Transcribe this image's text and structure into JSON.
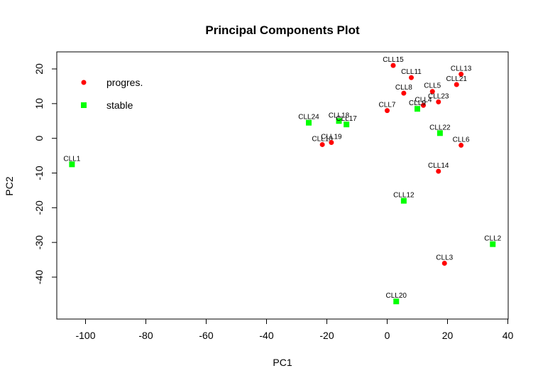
{
  "chart_data": {
    "type": "scatter",
    "title": "Principal Components Plot",
    "xlabel": "PC1",
    "ylabel": "PC2",
    "xlim": [
      -110,
      40
    ],
    "ylim": [
      -50,
      22
    ],
    "xticks": [
      -100,
      -80,
      -60,
      -40,
      -20,
      0,
      20,
      40
    ],
    "yticks": [
      -40,
      -30,
      -20,
      -10,
      0,
      10,
      20
    ],
    "grid": false,
    "legend_position": "top-left",
    "series": [
      {
        "name": "progres.",
        "color": "#ff0000",
        "marker": "circle",
        "points": [
          {
            "label": "CLL15",
            "x": 2,
            "y": 21
          },
          {
            "label": "CLL11",
            "x": 8,
            "y": 17.5
          },
          {
            "label": "CLL13",
            "x": 24.5,
            "y": 18.5
          },
          {
            "label": "CLL21",
            "x": 23,
            "y": 15.5
          },
          {
            "label": "CLL8",
            "x": 5.5,
            "y": 13
          },
          {
            "label": "CLL5",
            "x": 15,
            "y": 13.5
          },
          {
            "label": "CLL23",
            "x": 17,
            "y": 10.5
          },
          {
            "label": "CLL4",
            "x": 12,
            "y": 9.5
          },
          {
            "label": "CLL7",
            "x": 0,
            "y": 8
          },
          {
            "label": "CLL6",
            "x": 24.5,
            "y": -2
          },
          {
            "label": "CLL10",
            "x": -21.5,
            "y": -1.8
          },
          {
            "label": "CLL19",
            "x": -18.5,
            "y": -1.2
          },
          {
            "label": "CLL14",
            "x": 17,
            "y": -9.5
          },
          {
            "label": "CLL3",
            "x": 19,
            "y": -36
          }
        ]
      },
      {
        "name": "stable",
        "color": "#00ff00",
        "marker": "square",
        "points": [
          {
            "label": "CLL1",
            "x": -104.5,
            "y": -7.5
          },
          {
            "label": "CLL24",
            "x": -26,
            "y": 4.5
          },
          {
            "label": "CLL18",
            "x": -16,
            "y": 5
          },
          {
            "label": "CLL17",
            "x": -13.5,
            "y": 4
          },
          {
            "label": "CLL9",
            "x": 10,
            "y": 8.5
          },
          {
            "label": "CLL22",
            "x": 17.5,
            "y": 1.5
          },
          {
            "label": "CLL12",
            "x": 5.5,
            "y": -18
          },
          {
            "label": "CLL2",
            "x": 35,
            "y": -30.5
          },
          {
            "label": "CLL20",
            "x": 3,
            "y": -47
          }
        ]
      }
    ]
  }
}
